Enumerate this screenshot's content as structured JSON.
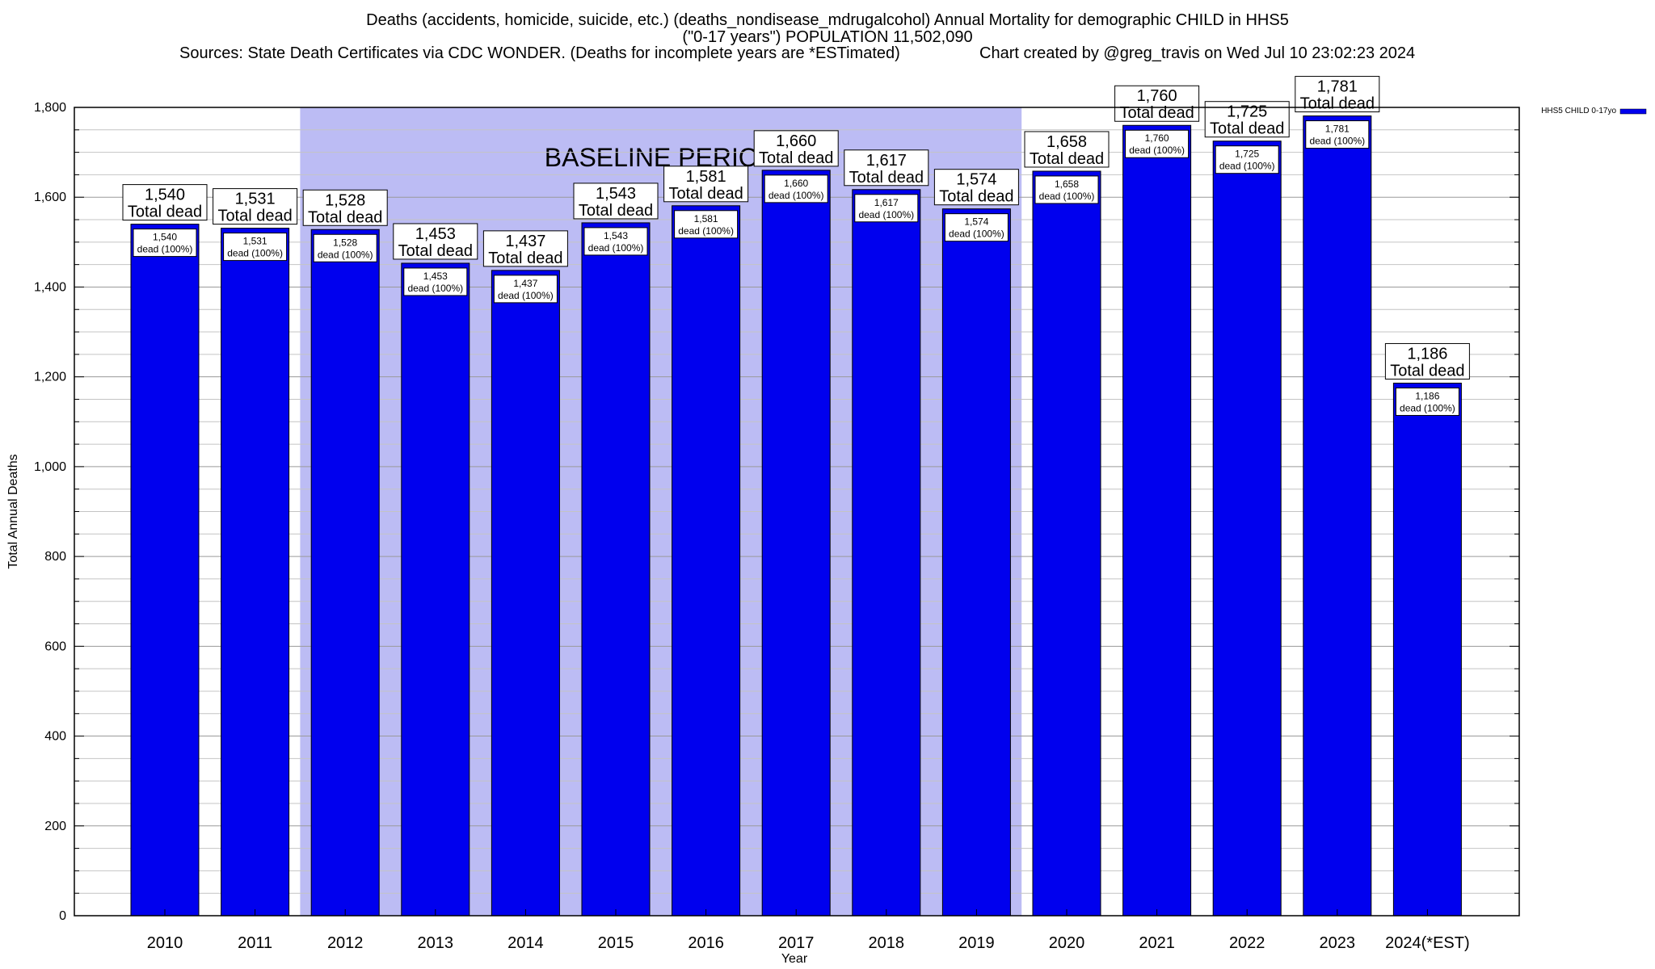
{
  "chart_data": {
    "type": "bar",
    "title": "Deaths (accidents, homicide, suicide, etc.) (deaths_nondisease_mdrugalcohol) Annual Mortality for demographic CHILD in HHS5",
    "subtitle": "(\"0-17 years\") POPULATION 11,502,090",
    "sources": "Sources: State Death Certificates via CDC WONDER. (Deaths for incomplete years are *ESTimated)",
    "credit": "Chart created by @greg_travis on Wed Jul 10 23:02:23 2024",
    "xlabel": "Year",
    "ylabel": "Total Annual Deaths",
    "ylim": [
      0,
      1800
    ],
    "yticks": [
      0,
      200,
      400,
      600,
      800,
      1000,
      1200,
      1400,
      1600,
      1800
    ],
    "ytick_labels": [
      "0",
      "200",
      "400",
      "600",
      "800",
      "1,000",
      "1,200",
      "1,400",
      "1,600",
      "1,800"
    ],
    "categories": [
      "2010",
      "2011",
      "2012",
      "2013",
      "2014",
      "2015",
      "2016",
      "2017",
      "2018",
      "2019",
      "2020",
      "2021",
      "2022",
      "2023",
      "2024(*EST)"
    ],
    "series": [
      {
        "name": "HHS5 CHILD 0-17yo",
        "color": "#0000ee",
        "values": [
          1540,
          1531,
          1528,
          1453,
          1437,
          1543,
          1581,
          1660,
          1617,
          1574,
          1658,
          1760,
          1725,
          1781,
          1186
        ]
      }
    ],
    "total_labels": [
      "1,540",
      "1,531",
      "1,528",
      "1,453",
      "1,437",
      "1,543",
      "1,581",
      "1,660",
      "1,617",
      "1,574",
      "1,658",
      "1,760",
      "1,725",
      "1,781",
      "1,186"
    ],
    "total_suffix": "Total dead",
    "inner_labels": [
      "1,540",
      "1,531",
      "1,528",
      "1,453",
      "1,437",
      "1,543",
      "1,581",
      "1,660",
      "1,617",
      "1,574",
      "1,658",
      "1,760",
      "1,725",
      "1,781",
      "1,186"
    ],
    "inner_suffix": "dead (100%)",
    "baseline": {
      "label": "BASELINE PERIOD",
      "from": "2012",
      "to": "2019",
      "color": "#bcbcf4"
    },
    "grid": true,
    "legend_position": "top-right"
  }
}
